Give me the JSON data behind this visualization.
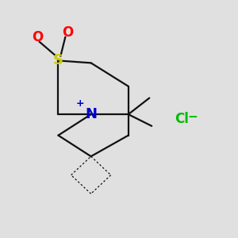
{
  "colors": {
    "S": "#cccc00",
    "O": "#ff0000",
    "N": "#0000cc",
    "bond": "#111111",
    "Cl": "#00bb00",
    "bg": "#e0e0e0"
  },
  "font_sizes": {
    "S": 13,
    "O": 12,
    "N": 13,
    "plus": 9,
    "Cl": 12,
    "minus": 11
  }
}
